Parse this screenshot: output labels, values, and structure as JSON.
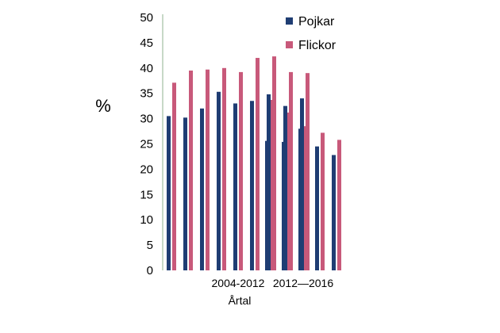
{
  "chart_data": {
    "type": "bar",
    "ylabel": "%",
    "xlabel": "Årtal",
    "ylim": [
      0,
      50
    ],
    "yticks": [
      0,
      5,
      10,
      15,
      20,
      25,
      30,
      35,
      40,
      45,
      50
    ],
    "group_labels": [
      "2004-2012",
      "2012—2016"
    ],
    "legend_position": "top-right",
    "groups": [
      {
        "label": "2004-2012",
        "series": [
          {
            "name": "Pojkar",
            "color": "#1F3D73",
            "values": [
              30.5,
              30.2,
              32.0,
              35.3,
              33.0,
              33.5,
              34.8,
              32.5,
              34.0
            ]
          },
          {
            "name": "Flickor",
            "color": "#C8597A",
            "values": [
              37.1,
              39.5,
              39.7,
              40.0,
              39.2,
              42.0,
              42.3,
              39.2,
              39.0
            ]
          }
        ]
      },
      {
        "label": "2012—2016",
        "series": [
          {
            "name": "Pojkar",
            "color": "#1F3D73",
            "values": [
              25.6,
              25.4,
              28.0,
              24.5,
              22.8
            ]
          },
          {
            "name": "Flickor",
            "color": "#C8597A",
            "values": [
              33.7,
              31.2,
              28.5,
              27.2,
              25.8
            ]
          }
        ]
      }
    ],
    "legend": [
      {
        "name": "Pojkar",
        "color": "#1F3D73"
      },
      {
        "name": "Flickor",
        "color": "#C8597A"
      }
    ]
  }
}
